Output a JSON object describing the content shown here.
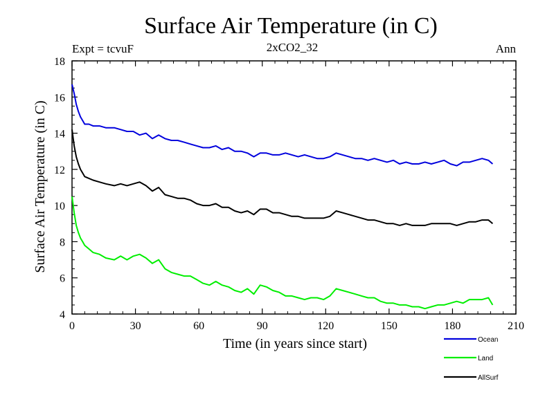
{
  "chart_data": {
    "type": "line",
    "title": "Surface Air Temperature (in C)",
    "subtitle": "2xCO2_32",
    "left_note": "Expt = tcvuF",
    "right_note": "Ann",
    "xlabel": "Time (in years since start)",
    "ylabel": "Surface Air Temperature (in C)",
    "xlim": [
      0,
      210
    ],
    "ylim": [
      4,
      18
    ],
    "x_ticks": [
      0,
      30,
      60,
      90,
      120,
      150,
      180,
      210
    ],
    "y_ticks": [
      4,
      6,
      8,
      10,
      12,
      14,
      16,
      18
    ],
    "grid": false,
    "legend_position": "bottom-right",
    "series": [
      {
        "name": "Ocean",
        "color": "#0000dd",
        "x": [
          0,
          1,
          2,
          3,
          4,
          5,
          6,
          8,
          10,
          13,
          16,
          20,
          23,
          26,
          29,
          32,
          35,
          38,
          41,
          44,
          47,
          50,
          53,
          56,
          59,
          62,
          65,
          68,
          71,
          74,
          77,
          80,
          83,
          86,
          89,
          92,
          95,
          98,
          101,
          104,
          107,
          110,
          113,
          116,
          119,
          122,
          125,
          128,
          131,
          134,
          137,
          140,
          143,
          146,
          149,
          152,
          155,
          158,
          161,
          164,
          167,
          170,
          173,
          176,
          179,
          182,
          185,
          188,
          191,
          194,
          197,
          199
        ],
        "y": [
          16.7,
          16.2,
          15.6,
          15.2,
          14.9,
          14.7,
          14.5,
          14.5,
          14.4,
          14.4,
          14.3,
          14.3,
          14.2,
          14.1,
          14.1,
          13.9,
          14.0,
          13.7,
          13.9,
          13.7,
          13.6,
          13.6,
          13.5,
          13.4,
          13.3,
          13.2,
          13.2,
          13.3,
          13.1,
          13.2,
          13.0,
          13.0,
          12.9,
          12.7,
          12.9,
          12.9,
          12.8,
          12.8,
          12.9,
          12.8,
          12.7,
          12.8,
          12.7,
          12.6,
          12.6,
          12.7,
          12.9,
          12.8,
          12.7,
          12.6,
          12.6,
          12.5,
          12.6,
          12.5,
          12.4,
          12.5,
          12.3,
          12.4,
          12.3,
          12.3,
          12.4,
          12.3,
          12.4,
          12.5,
          12.3,
          12.2,
          12.4,
          12.4,
          12.5,
          12.6,
          12.5,
          12.3
        ]
      },
      {
        "name": "Land",
        "color": "#00ee00",
        "x": [
          0,
          1,
          2,
          3,
          4,
          5,
          6,
          8,
          10,
          13,
          16,
          20,
          23,
          26,
          29,
          32,
          35,
          38,
          41,
          44,
          47,
          50,
          53,
          56,
          59,
          62,
          65,
          68,
          71,
          74,
          77,
          80,
          83,
          86,
          89,
          92,
          95,
          98,
          101,
          104,
          107,
          110,
          113,
          116,
          119,
          122,
          125,
          128,
          131,
          134,
          137,
          140,
          143,
          146,
          149,
          152,
          155,
          158,
          161,
          164,
          167,
          170,
          173,
          176,
          179,
          182,
          185,
          188,
          191,
          194,
          197,
          199
        ],
        "y": [
          10.5,
          9.6,
          8.9,
          8.5,
          8.2,
          8.0,
          7.8,
          7.6,
          7.4,
          7.3,
          7.1,
          7.0,
          7.2,
          7.0,
          7.2,
          7.3,
          7.1,
          6.8,
          7.0,
          6.5,
          6.3,
          6.2,
          6.1,
          6.1,
          5.9,
          5.7,
          5.6,
          5.8,
          5.6,
          5.5,
          5.3,
          5.2,
          5.4,
          5.1,
          5.6,
          5.5,
          5.3,
          5.2,
          5.0,
          5.0,
          4.9,
          4.8,
          4.9,
          4.9,
          4.8,
          5.0,
          5.4,
          5.3,
          5.2,
          5.1,
          5.0,
          4.9,
          4.9,
          4.7,
          4.6,
          4.6,
          4.5,
          4.5,
          4.4,
          4.4,
          4.3,
          4.4,
          4.5,
          4.5,
          4.6,
          4.7,
          4.6,
          4.8,
          4.8,
          4.8,
          4.9,
          4.5
        ]
      },
      {
        "name": "AllSurf",
        "color": "#000000",
        "x": [
          0,
          1,
          2,
          3,
          4,
          5,
          6,
          8,
          10,
          13,
          16,
          20,
          23,
          26,
          29,
          32,
          35,
          38,
          41,
          44,
          47,
          50,
          53,
          56,
          59,
          62,
          65,
          68,
          71,
          74,
          77,
          80,
          83,
          86,
          89,
          92,
          95,
          98,
          101,
          104,
          107,
          110,
          113,
          116,
          119,
          122,
          125,
          128,
          131,
          134,
          137,
          140,
          143,
          146,
          149,
          152,
          155,
          158,
          161,
          164,
          167,
          170,
          173,
          176,
          179,
          182,
          185,
          188,
          191,
          194,
          197,
          199
        ],
        "y": [
          14.2,
          13.3,
          12.7,
          12.3,
          12.0,
          11.8,
          11.6,
          11.5,
          11.4,
          11.3,
          11.2,
          11.1,
          11.2,
          11.1,
          11.2,
          11.3,
          11.1,
          10.8,
          11.0,
          10.6,
          10.5,
          10.4,
          10.4,
          10.3,
          10.1,
          10.0,
          10.0,
          10.1,
          9.9,
          9.9,
          9.7,
          9.6,
          9.7,
          9.5,
          9.8,
          9.8,
          9.6,
          9.6,
          9.5,
          9.4,
          9.4,
          9.3,
          9.3,
          9.3,
          9.3,
          9.4,
          9.7,
          9.6,
          9.5,
          9.4,
          9.3,
          9.2,
          9.2,
          9.1,
          9.0,
          9.0,
          8.9,
          9.0,
          8.9,
          8.9,
          8.9,
          9.0,
          9.0,
          9.0,
          9.0,
          8.9,
          9.0,
          9.1,
          9.1,
          9.2,
          9.2,
          9.0
        ]
      }
    ]
  }
}
